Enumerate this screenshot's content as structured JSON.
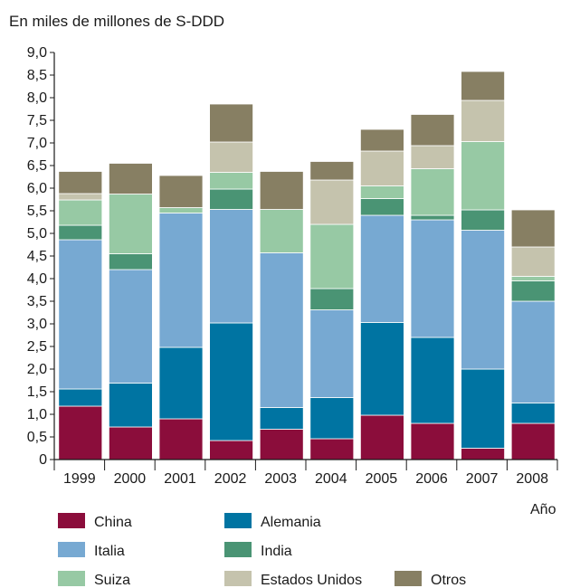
{
  "chart_data": {
    "type": "bar",
    "stacked": true,
    "ylabel": "En miles de millones de S-DDD",
    "xlabel": "Año",
    "ylim": [
      0,
      9
    ],
    "yticks": [
      "0",
      "0,5",
      "1,0",
      "1,5",
      "2,0",
      "2,5",
      "3,0",
      "3,5",
      "4,0",
      "4,5",
      "5,0",
      "5,5",
      "6,0",
      "6,5",
      "7,0",
      "7,5",
      "8,0",
      "8,5",
      "9,0"
    ],
    "categories": [
      "1999",
      "2000",
      "2001",
      "2002",
      "2003",
      "2004",
      "2005",
      "2006",
      "2007",
      "2008"
    ],
    "series": [
      {
        "name": "China",
        "color": "#8b0d3b",
        "values": [
          1.18,
          0.72,
          0.9,
          0.42,
          0.67,
          0.46,
          0.98,
          0.8,
          0.25,
          0.8
        ]
      },
      {
        "name": "Alemania",
        "color": "#0074a2",
        "values": [
          0.38,
          0.97,
          1.58,
          2.6,
          0.48,
          0.91,
          2.05,
          1.9,
          1.75,
          0.45
        ]
      },
      {
        "name": "Italia",
        "color": "#77a9d2",
        "values": [
          3.3,
          2.51,
          2.97,
          2.51,
          3.42,
          1.94,
          2.37,
          2.6,
          3.07,
          2.25
        ]
      },
      {
        "name": "India",
        "color": "#4a9474",
        "values": [
          0.32,
          0.35,
          0.0,
          0.45,
          0.0,
          0.47,
          0.37,
          0.1,
          0.45,
          0.45
        ]
      },
      {
        "name": "Suiza",
        "color": "#97c9a4",
        "values": [
          0.56,
          1.32,
          0.12,
          0.37,
          0.96,
          1.42,
          0.28,
          1.03,
          1.51,
          0.1
        ]
      },
      {
        "name": "Estados Unidos",
        "color": "#c5c3ad",
        "values": [
          0.14,
          0.0,
          0.0,
          0.67,
          0.0,
          0.98,
          0.77,
          0.51,
          0.91,
          0.65
        ]
      },
      {
        "name": "Otros",
        "color": "#877f63",
        "values": [
          0.49,
          0.68,
          0.71,
          0.84,
          0.84,
          0.41,
          0.48,
          0.69,
          0.64,
          0.82
        ]
      }
    ],
    "legend_placement": "bottom",
    "grid": false
  }
}
